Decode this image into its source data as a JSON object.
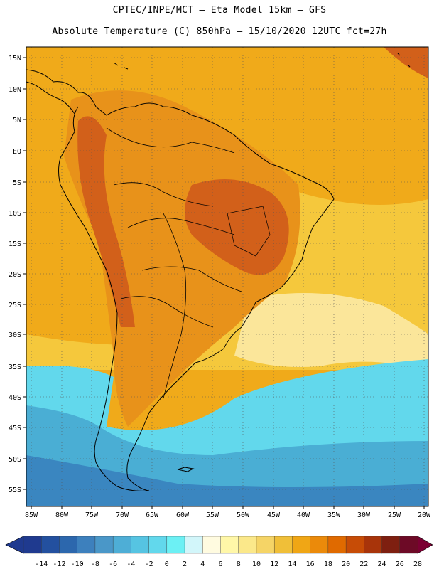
{
  "header": {
    "line1": "CPTEC/INPE/MCT –  Eta Model 15km – GFS",
    "line2": "Absolute Temperature (C) 850hPa – 15/10/2020 12UTC fct=27h"
  },
  "map": {
    "lat_ticks": [
      "15N",
      "10N",
      "5N",
      "EQ",
      "5S",
      "10S",
      "15S",
      "20S",
      "25S",
      "30S",
      "35S",
      "40S",
      "45S",
      "50S",
      "55S"
    ],
    "lon_ticks": [
      "85W",
      "80W",
      "75W",
      "70W",
      "65W",
      "60W",
      "55W",
      "50W",
      "45W",
      "40W",
      "35W",
      "30W",
      "25W",
      "20W"
    ],
    "region": "South America"
  },
  "colorbar": {
    "labels": [
      "-14",
      "-12",
      "-10",
      "-8",
      "-6",
      "-4",
      "-2",
      "0",
      "2",
      "4",
      "6",
      "8",
      "10",
      "12",
      "14",
      "16",
      "18",
      "20",
      "22",
      "24",
      "26",
      "28"
    ],
    "colors": [
      "#1f3a8f",
      "#23509f",
      "#2c67ad",
      "#3d80bd",
      "#4a97c8",
      "#4eaed6",
      "#56c4e2",
      "#62d8ec",
      "#6cf0f4",
      "#d2f6fa",
      "#fffbe0",
      "#fff7a8",
      "#fbe88a",
      "#f5d466",
      "#f0bf38",
      "#f0a615",
      "#eb8a0a",
      "#e06a00",
      "#c74c06",
      "#a8340a",
      "#7e1f10",
      "#6d0a26"
    ],
    "low_arrow_color": "#1f3a8f",
    "high_arrow_color": "#7b0032"
  },
  "field_colors": {
    "hot": "#d2601a",
    "warm": "#e8921a",
    "mild": "#f0aa1a",
    "moderate": "#f5c83c",
    "cool": "#fbe69a",
    "cold": "#62d8ec",
    "colder": "#4aaed4",
    "coldest": "#3a86c0",
    "coastline": "#000000"
  }
}
